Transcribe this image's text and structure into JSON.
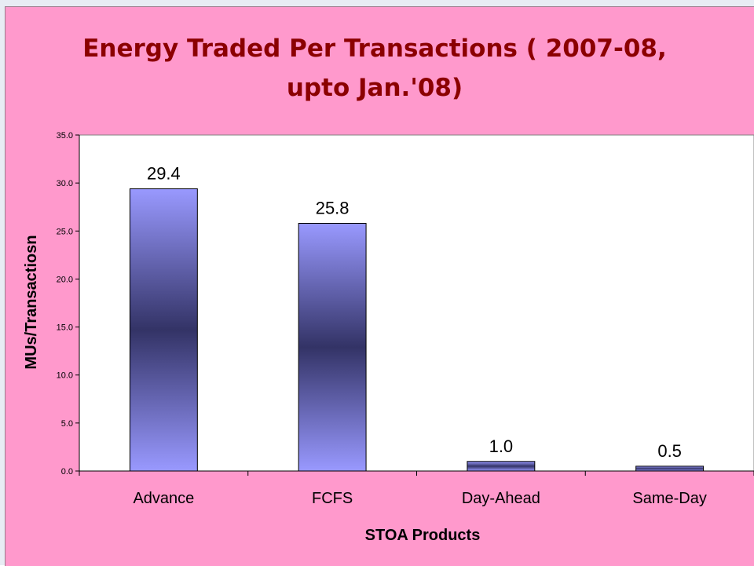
{
  "chart_data": {
    "type": "bar",
    "title_lines": [
      "Energy Traded Per Transactions ( 2007-08,",
      "upto Jan.'08)"
    ],
    "xlabel": "STOA Products",
    "ylabel": "MUs/Transactiosn",
    "categories": [
      "Advance",
      "FCFS",
      "Day-Ahead",
      "Same-Day"
    ],
    "values": [
      29.4,
      25.8,
      1.0,
      0.5
    ],
    "data_labels": [
      "29.4",
      "25.8",
      "1.0",
      "0.5"
    ],
    "ylim": [
      0,
      35
    ],
    "yticks": [
      0,
      5,
      10,
      15,
      20,
      25,
      30,
      35
    ],
    "ytick_labels": [
      "0.0",
      "5.0",
      "10.0",
      "15.0",
      "20.0",
      "25.0",
      "30.0",
      "35.0"
    ],
    "grid": false,
    "legend": false,
    "colors": {
      "chart_background": "#ff99cc",
      "plot_background": "#ffffff",
      "bar_edge": "#9999ff",
      "bar_center": "#333366",
      "title": "#8b0000"
    }
  }
}
